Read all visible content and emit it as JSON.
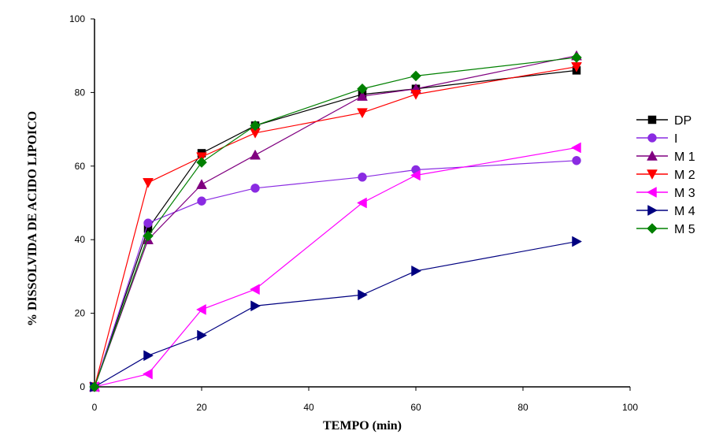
{
  "chart_data": {
    "type": "line",
    "xlabel": "TEMPO (min)",
    "ylabel": "% DISSOLVIDA DE ACIDO LIPOICO",
    "xlim": [
      0,
      100
    ],
    "ylim": [
      0,
      100
    ],
    "xticks": [
      0,
      20,
      40,
      60,
      80,
      100
    ],
    "yticks": [
      0,
      20,
      40,
      60,
      80,
      100
    ],
    "grid": false,
    "legend_position": "right",
    "x": [
      0,
      10,
      20,
      30,
      50,
      60,
      90
    ],
    "series": [
      {
        "name": "DP",
        "color": "#000000",
        "marker": "square",
        "values": [
          0,
          43,
          63.5,
          71,
          79.5,
          81,
          86
        ]
      },
      {
        "name": "I",
        "color": "#8a2be2",
        "marker": "circle",
        "values": [
          0,
          44.5,
          50.5,
          54,
          57,
          59,
          61.5
        ]
      },
      {
        "name": "M 1",
        "color": "#800080",
        "marker": "triangle-up",
        "values": [
          0,
          40,
          55,
          63,
          79,
          81,
          90
        ]
      },
      {
        "name": "M 2",
        "color": "#ff0000",
        "marker": "triangle-down",
        "values": [
          0,
          55.5,
          62.5,
          69,
          74.5,
          79.5,
          87
        ]
      },
      {
        "name": "M 3",
        "color": "#ff00ff",
        "marker": "triangle-left",
        "values": [
          0,
          3.5,
          21,
          26.5,
          50,
          57.5,
          65
        ]
      },
      {
        "name": "M 4",
        "color": "#000080",
        "marker": "triangle-right",
        "values": [
          0,
          8.5,
          14,
          22,
          25,
          31.5,
          39.5
        ]
      },
      {
        "name": "M 5",
        "color": "#008000",
        "marker": "diamond",
        "values": [
          0,
          41,
          61,
          71,
          81,
          84.5,
          89.5
        ]
      }
    ]
  }
}
